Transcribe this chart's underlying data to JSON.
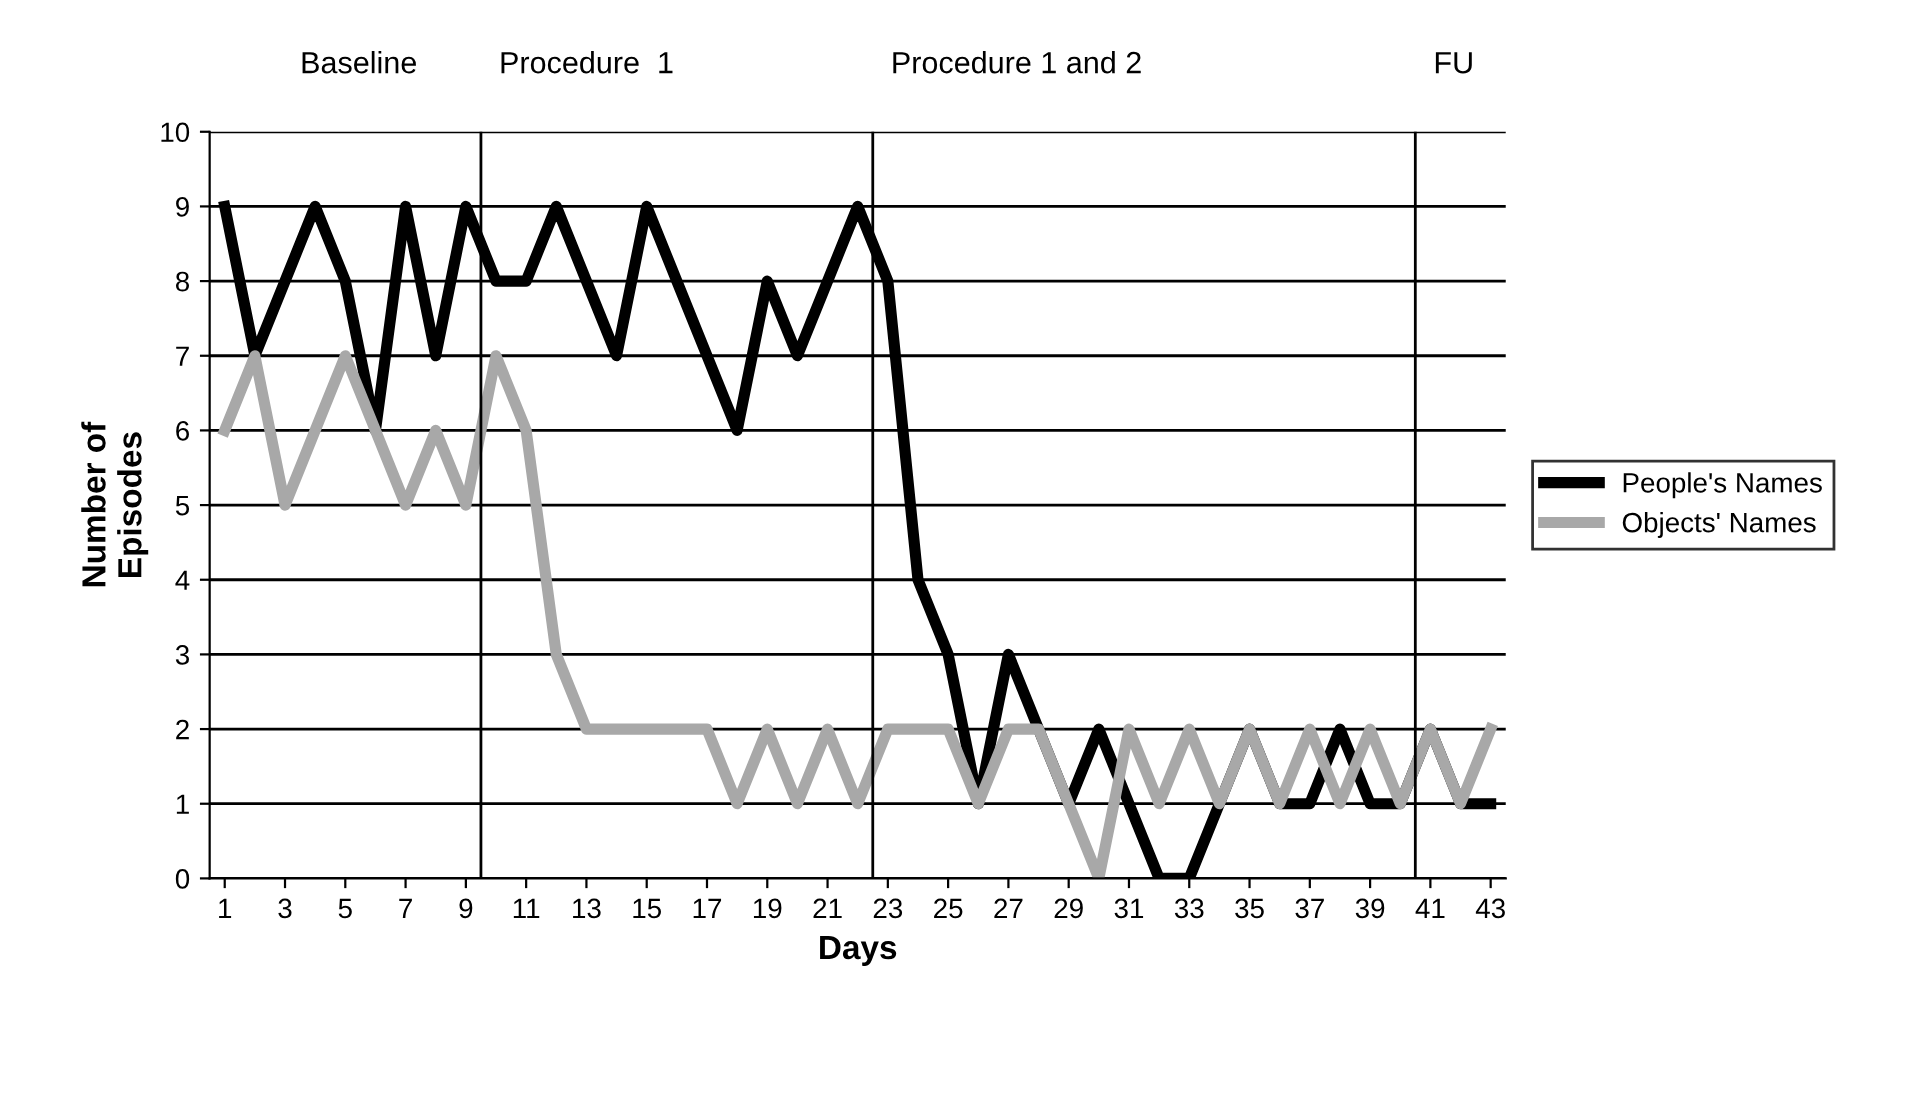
{
  "chart_data": {
    "type": "line",
    "xlabel": "Days",
    "ylabel": "Number of\nEpisodes",
    "x": [
      1,
      2,
      3,
      4,
      5,
      6,
      7,
      8,
      9,
      10,
      11,
      12,
      13,
      14,
      15,
      16,
      17,
      18,
      19,
      20,
      21,
      22,
      23,
      24,
      25,
      26,
      27,
      28,
      29,
      30,
      31,
      32,
      33,
      34,
      35,
      36,
      37,
      38,
      39,
      40,
      41,
      42,
      43
    ],
    "series": [
      {
        "name": "People's Names",
        "color": "#000000",
        "values": [
          9,
          7,
          8,
          9,
          8,
          6,
          9,
          7,
          9,
          8,
          8,
          9,
          8,
          7,
          9,
          8,
          7,
          6,
          8,
          7,
          8,
          9,
          8,
          4,
          3,
          1,
          3,
          2,
          1,
          2,
          1,
          0,
          0,
          1,
          2,
          1,
          1,
          2,
          1,
          1,
          2,
          1,
          1
        ]
      },
      {
        "name": "Objects' Names",
        "color": "#a8a8a8",
        "values": [
          6,
          7,
          5,
          6,
          7,
          6,
          5,
          6,
          5,
          7,
          6,
          3,
          2,
          2,
          2,
          2,
          2,
          1,
          2,
          1,
          2,
          1,
          2,
          2,
          2,
          1,
          2,
          2,
          1,
          0,
          2,
          1,
          2,
          1,
          2,
          1,
          2,
          1,
          2,
          1,
          2,
          1,
          2
        ]
      }
    ],
    "xlim": [
      0.5,
      43.5
    ],
    "xticks": [
      1,
      3,
      5,
      7,
      9,
      11,
      13,
      15,
      17,
      19,
      21,
      23,
      25,
      27,
      29,
      31,
      33,
      35,
      37,
      39,
      41,
      43
    ],
    "ylim": [
      0,
      10
    ],
    "yticks": [
      0,
      1,
      2,
      3,
      4,
      5,
      6,
      7,
      8,
      9,
      10
    ],
    "grid": "y",
    "legend": "right",
    "ref_lines": [
      {
        "axis": "x",
        "value": 9.5
      },
      {
        "axis": "x",
        "value": 22.5
      },
      {
        "axis": "x",
        "value": 40.5
      }
    ],
    "annotations": [
      "Baseline",
      "Procedure  1",
      "Procedure 1 and 2",
      "FU"
    ]
  }
}
